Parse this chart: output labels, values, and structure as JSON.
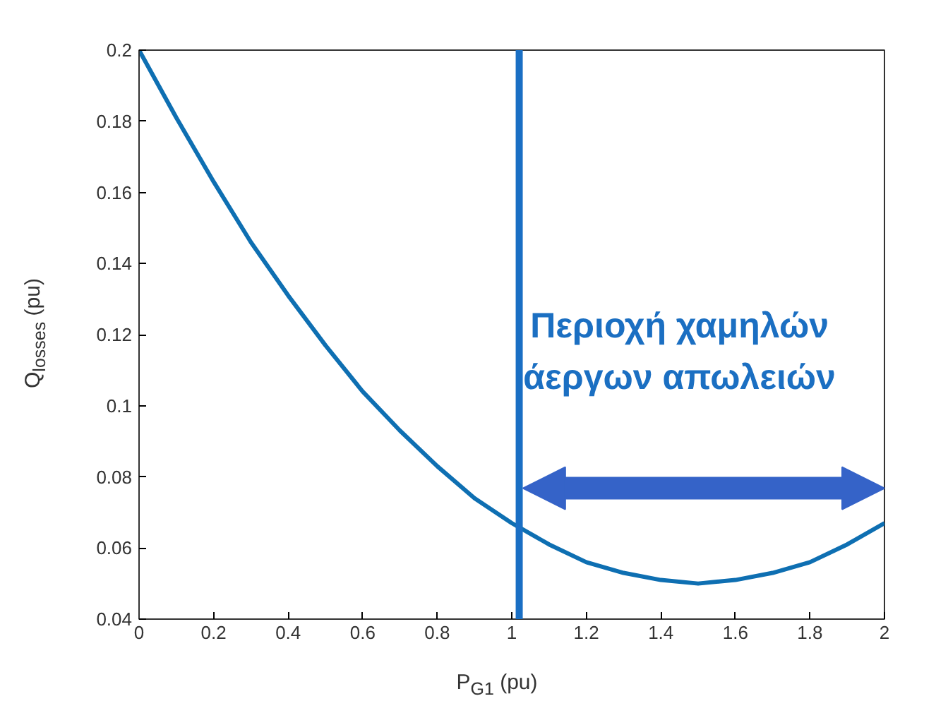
{
  "chart_data": {
    "type": "line",
    "xlabel": "P$_{G1}$ (pu)",
    "ylabel": "Q$_{losses}$ (pu)",
    "x": [
      0,
      0.1,
      0.2,
      0.3,
      0.4,
      0.5,
      0.6,
      0.7,
      0.8,
      0.9,
      1.0,
      1.1,
      1.2,
      1.3,
      1.4,
      1.5,
      1.6,
      1.7,
      1.8,
      1.9,
      2.0
    ],
    "series": [
      {
        "color": "#0e6fb2",
        "values": [
          0.2,
          0.181,
          0.163,
          0.146,
          0.131,
          0.117,
          0.104,
          0.093,
          0.083,
          0.074,
          0.067,
          0.061,
          0.056,
          0.053,
          0.051,
          0.05,
          0.051,
          0.053,
          0.056,
          0.061,
          0.067
        ]
      }
    ],
    "xlim": [
      0,
      2
    ],
    "xticks": [
      0,
      0.2,
      0.4,
      0.6,
      0.8,
      1,
      1.2,
      1.4,
      1.6,
      1.8,
      2
    ],
    "ylim": [
      0.04,
      0.2
    ],
    "yticks": [
      0.04,
      0.06,
      0.08,
      0.1,
      0.12,
      0.14,
      0.16,
      0.18,
      0.2
    ],
    "ref_lines": [
      {
        "axis": "x",
        "value": 1.02,
        "color": "#1a6fc4"
      }
    ],
    "annotations": [
      "Περιοχή χαμηλών\nάεργων απωλειών"
    ],
    "grid": false,
    "marker": "none",
    "line_style": "solid"
  }
}
